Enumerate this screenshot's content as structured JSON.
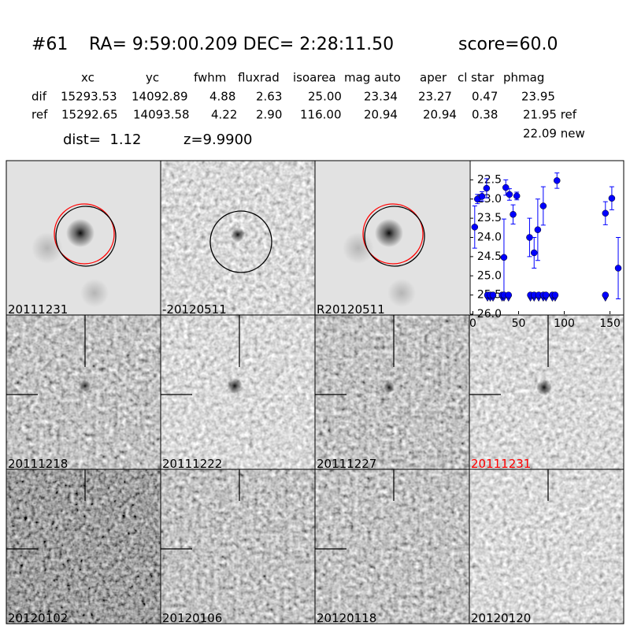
{
  "header": {
    "id": "#61",
    "coords": "RA= 9:59:00.209 DEC= 2:28:11.50",
    "score": "score=60.0"
  },
  "table": {
    "columns": [
      "xc",
      "yc",
      "fwhm",
      "fluxrad",
      "isoarea",
      "mag auto",
      "aper",
      "cl star",
      "phmag"
    ],
    "rows": [
      [
        "dif",
        "15293.53",
        "14092.89",
        "4.88",
        "2.63",
        "25.00",
        "23.34",
        "23.27",
        "0.47",
        "23.95"
      ],
      [
        "ref",
        "15292.65",
        "14093.58",
        "4.22",
        "2.90",
        "116.00",
        "20.94",
        "20.94",
        "0.38",
        "21.95 ref"
      ]
    ],
    "extra": "22.09 new"
  },
  "dist": "dist=  1.12",
  "z": "z=9.9900",
  "panels": [
    {
      "label": "20111231",
      "color": "#000000"
    },
    {
      "label": "-20120511",
      "color": "#000000"
    },
    {
      "label": "R20120511",
      "color": "#000000"
    },
    {
      "label": "20111218",
      "color": "#000000"
    },
    {
      "label": "20111222",
      "color": "#000000"
    },
    {
      "label": "20111227",
      "color": "#000000"
    },
    {
      "label": "20111231",
      "color": "#ff0000"
    },
    {
      "label": "20120102",
      "color": "#000000"
    },
    {
      "label": "20120106",
      "color": "#000000"
    },
    {
      "label": "20120118",
      "color": "#000000"
    },
    {
      "label": "20120120",
      "color": "#000000"
    }
  ],
  "chart_data": {
    "type": "scatter",
    "xlim": [
      -3,
      165
    ],
    "ylim": [
      26.0,
      22.0
    ],
    "xticks": [
      0,
      50,
      100,
      150
    ],
    "yticks": [
      22.5,
      {
        "value": 23.0,
        "label": "23.0"
      },
      23.5,
      {
        "value": 24.0,
        "label": "24.0"
      },
      24.5,
      {
        "value": 25.0,
        "label": "25.0"
      },
      25.5,
      {
        "value": 26.0,
        "label": "26.0"
      }
    ],
    "series": [
      {
        "color": "#0000ff",
        "marker": "circle",
        "x": [
          2,
          5,
          10,
          15,
          34,
          36,
          40,
          44,
          48,
          62,
          67,
          71,
          77,
          92,
          145,
          152,
          159
        ],
        "values": [
          23.73,
          23.0,
          22.93,
          22.72,
          24.52,
          22.7,
          22.88,
          23.4,
          22.92,
          24.0,
          24.4,
          23.8,
          23.18,
          22.52,
          23.37,
          22.98,
          24.8
        ],
        "errors": [
          0.55,
          0.12,
          0.12,
          0.25,
          1.0,
          0.2,
          0.15,
          0.25,
          0.1,
          0.5,
          0.4,
          0.8,
          0.5,
          0.2,
          0.3,
          0.3,
          0.8
        ]
      },
      {
        "color": "#0000ff",
        "marker": "triangle-down",
        "x": [
          16,
          19,
          22,
          32,
          34,
          39,
          63,
          67,
          72,
          77,
          80,
          87,
          90,
          145
        ],
        "values": [
          25.5,
          25.5,
          25.5,
          25.5,
          25.5,
          25.5,
          25.5,
          25.5,
          25.5,
          25.5,
          25.5,
          25.5,
          25.5,
          25.5
        ]
      }
    ]
  }
}
